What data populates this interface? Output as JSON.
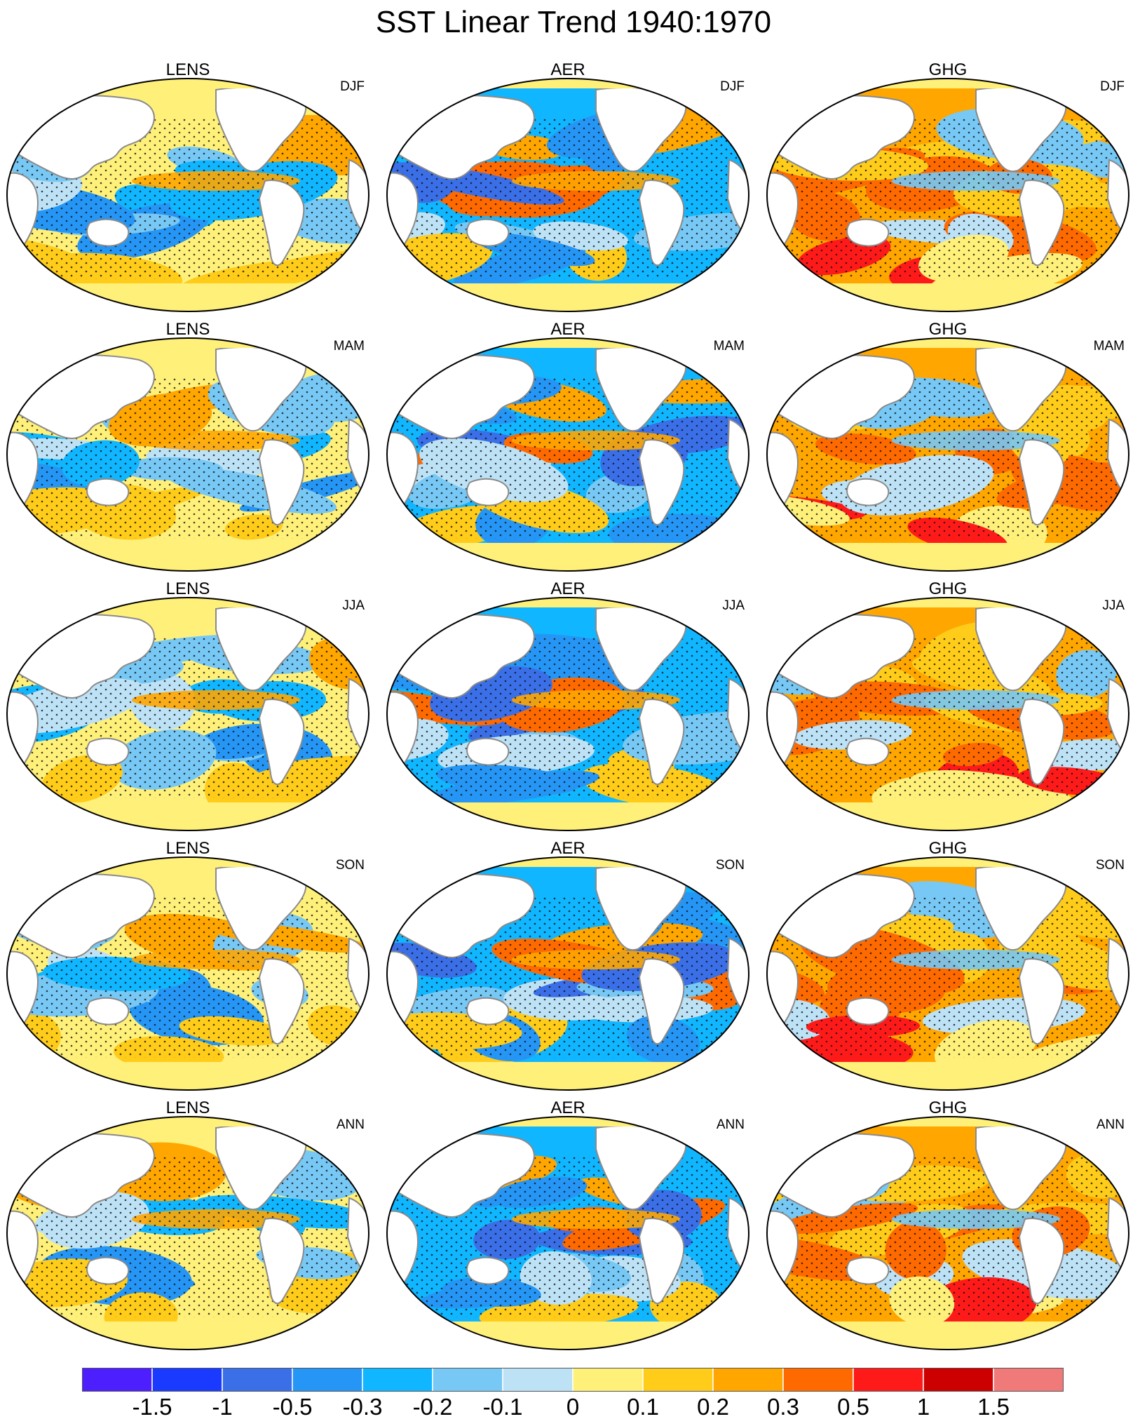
{
  "title": "SST Linear Trend 1940:1970",
  "models": [
    "LENS",
    "AER",
    "GHG"
  ],
  "seasons": [
    "DJF",
    "MAM",
    "JJA",
    "SON",
    "ANN"
  ],
  "colorbar": {
    "colors": [
      "#4d1fff",
      "#1a3bff",
      "#3a6fe8",
      "#2596f5",
      "#10b6ff",
      "#77c8f5",
      "#bde2f6",
      "#fff07a",
      "#ffcc1a",
      "#ffa600",
      "#ff6a00",
      "#ff1a1a",
      "#cc0000",
      "#f07a7a"
    ],
    "labels": [
      "-1.5",
      "-1",
      "-0.5",
      "-0.3",
      "-0.2",
      "-0.1",
      "0",
      "0.1",
      "0.2",
      "0.3",
      "0.5",
      "1",
      "1.5"
    ]
  },
  "chart_data": {
    "type": "heatmap",
    "projection": "Winkel tripel (Pacific-centered)",
    "title": "SST Linear Trend 1940:1970",
    "rows": [
      "DJF",
      "MAM",
      "JJA",
      "SON",
      "ANN"
    ],
    "columns": [
      "LENS",
      "AER",
      "GHG"
    ],
    "contour_levels": [
      -1.5,
      -1,
      -0.5,
      -0.3,
      -0.2,
      -0.1,
      0,
      0.1,
      0.2,
      0.3,
      0.5,
      1,
      1.5
    ],
    "stippling": true,
    "panels": [
      {
        "model": "LENS",
        "season": "DJF"
      },
      {
        "model": "AER",
        "season": "DJF"
      },
      {
        "model": "GHG",
        "season": "DJF"
      },
      {
        "model": "LENS",
        "season": "MAM"
      },
      {
        "model": "AER",
        "season": "MAM"
      },
      {
        "model": "GHG",
        "season": "MAM"
      },
      {
        "model": "LENS",
        "season": "JJA"
      },
      {
        "model": "AER",
        "season": "JJA"
      },
      {
        "model": "GHG",
        "season": "JJA"
      },
      {
        "model": "LENS",
        "season": "SON"
      },
      {
        "model": "AER",
        "season": "SON"
      },
      {
        "model": "GHG",
        "season": "SON"
      },
      {
        "model": "LENS",
        "season": "ANN"
      },
      {
        "model": "AER",
        "season": "ANN"
      },
      {
        "model": "GHG",
        "season": "ANN"
      }
    ]
  }
}
